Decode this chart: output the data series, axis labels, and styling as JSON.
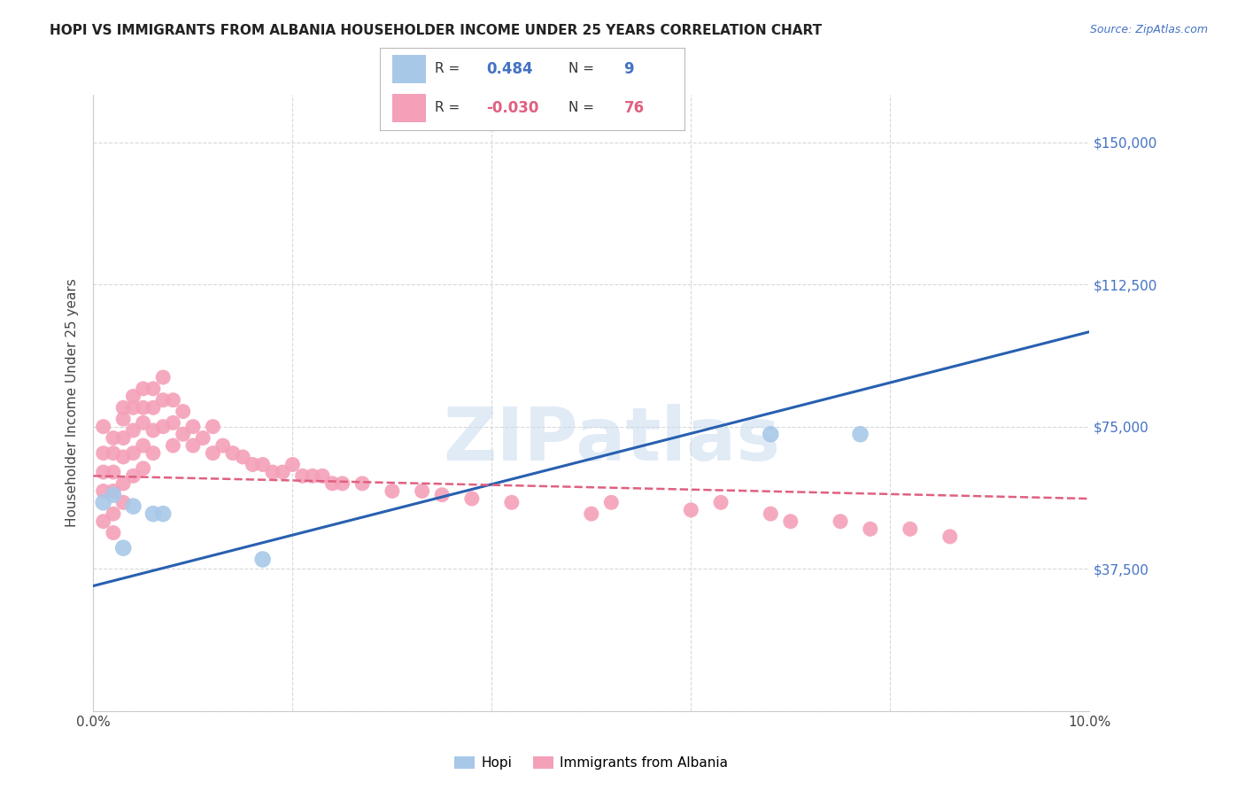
{
  "title": "HOPI VS IMMIGRANTS FROM ALBANIA HOUSEHOLDER INCOME UNDER 25 YEARS CORRELATION CHART",
  "source": "Source: ZipAtlas.com",
  "ylabel": "Householder Income Under 25 years",
  "xlim": [
    0.0,
    0.1
  ],
  "ylim": [
    0,
    162500
  ],
  "yticks": [
    0,
    37500,
    75000,
    112500,
    150000
  ],
  "ytick_labels": [
    "",
    "$37,500",
    "$75,000",
    "$112,500",
    "$150,000"
  ],
  "xticks": [
    0.0,
    0.02,
    0.04,
    0.06,
    0.08,
    0.1
  ],
  "xtick_labels": [
    "0.0%",
    "",
    "",
    "",
    "",
    "10.0%"
  ],
  "background_color": "#ffffff",
  "grid_color": "#d8d8d8",
  "hopi_color": "#a8c8e8",
  "albania_color": "#f4a0b8",
  "hopi_line_color": "#2860b0",
  "albania_line_color": "#e06080",
  "watermark_text": "ZIPatlas",
  "hopi_points_x": [
    0.001,
    0.002,
    0.003,
    0.004,
    0.006,
    0.007,
    0.017,
    0.068,
    0.077
  ],
  "hopi_points_y": [
    55000,
    57000,
    43000,
    54000,
    52000,
    52000,
    40000,
    73000,
    73000
  ],
  "albania_points_x": [
    0.001,
    0.001,
    0.001,
    0.001,
    0.001,
    0.002,
    0.002,
    0.002,
    0.002,
    0.002,
    0.002,
    0.003,
    0.003,
    0.003,
    0.003,
    0.003,
    0.003,
    0.004,
    0.004,
    0.004,
    0.004,
    0.004,
    0.005,
    0.005,
    0.005,
    0.005,
    0.005,
    0.006,
    0.006,
    0.006,
    0.006,
    0.007,
    0.007,
    0.007,
    0.008,
    0.008,
    0.008,
    0.009,
    0.009,
    0.01,
    0.01,
    0.011,
    0.012,
    0.012,
    0.013,
    0.014,
    0.015,
    0.016,
    0.017,
    0.018,
    0.019,
    0.02,
    0.021,
    0.022,
    0.023,
    0.024,
    0.025,
    0.027,
    0.03,
    0.033,
    0.035,
    0.038,
    0.042,
    0.05,
    0.052,
    0.06,
    0.063,
    0.068,
    0.07,
    0.075,
    0.078,
    0.082,
    0.086
  ],
  "albania_points_y": [
    63000,
    75000,
    68000,
    58000,
    50000,
    63000,
    72000,
    68000,
    58000,
    52000,
    47000,
    80000,
    77000,
    72000,
    67000,
    60000,
    55000,
    83000,
    80000,
    74000,
    68000,
    62000,
    85000,
    80000,
    76000,
    70000,
    64000,
    85000,
    80000,
    74000,
    68000,
    88000,
    82000,
    75000,
    82000,
    76000,
    70000,
    79000,
    73000,
    75000,
    70000,
    72000,
    75000,
    68000,
    70000,
    68000,
    67000,
    65000,
    65000,
    63000,
    63000,
    65000,
    62000,
    62000,
    62000,
    60000,
    60000,
    60000,
    58000,
    58000,
    57000,
    56000,
    55000,
    52000,
    55000,
    53000,
    55000,
    52000,
    50000,
    50000,
    48000,
    48000,
    46000
  ],
  "hopi_line_x0": 0.0,
  "hopi_line_x1": 0.1,
  "hopi_line_y0": 33000,
  "hopi_line_y1": 100000,
  "albania_line_x0": 0.0,
  "albania_line_x1": 0.1,
  "albania_line_y0": 62000,
  "albania_line_y1": 56000
}
